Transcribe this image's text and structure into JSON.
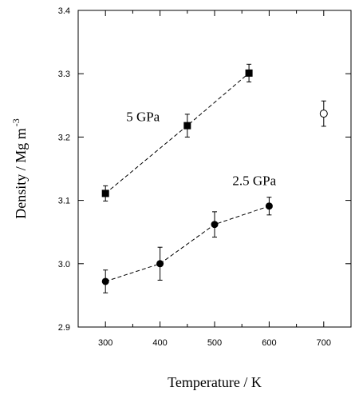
{
  "chart_data": {
    "type": "scatter",
    "title": "",
    "xlabel": "Temperature / K",
    "ylabel_main": "Density / Mg m",
    "ylabel_sup": "-3",
    "xlim": [
      250,
      750
    ],
    "ylim": [
      2.9,
      3.4
    ],
    "xticks": [
      300,
      400,
      500,
      600,
      700
    ],
    "xtick_labels": [
      "300",
      "400",
      "500",
      "600",
      "700"
    ],
    "yticks": [
      2.9,
      3.0,
      3.1,
      3.2,
      3.3,
      3.4
    ],
    "ytick_labels": [
      "2.9",
      "3.0",
      "3.1",
      "3.2",
      "3.3",
      "3.4"
    ],
    "grid": false,
    "series": [
      {
        "name": "5 GPa",
        "marker": "square-filled",
        "fit_line": "dashed",
        "points": [
          {
            "x": 300,
            "y": 3.111,
            "err": 0.012
          },
          {
            "x": 450,
            "y": 3.218,
            "err": 0.018
          },
          {
            "x": 563,
            "y": 3.301,
            "err": 0.014
          }
        ]
      },
      {
        "name": "2.5 GPa",
        "marker": "circle-filled",
        "fit_line": "dashed",
        "points": [
          {
            "x": 300,
            "y": 2.972,
            "err": 0.018
          },
          {
            "x": 400,
            "y": 3.0,
            "err": 0.026
          },
          {
            "x": 500,
            "y": 3.062,
            "err": 0.02
          },
          {
            "x": 600,
            "y": 3.091,
            "err": 0.014
          }
        ]
      },
      {
        "name": "",
        "marker": "circle-open",
        "fit_line": "none",
        "points": [
          {
            "x": 700,
            "y": 3.237,
            "err": 0.02
          }
        ]
      }
    ]
  }
}
